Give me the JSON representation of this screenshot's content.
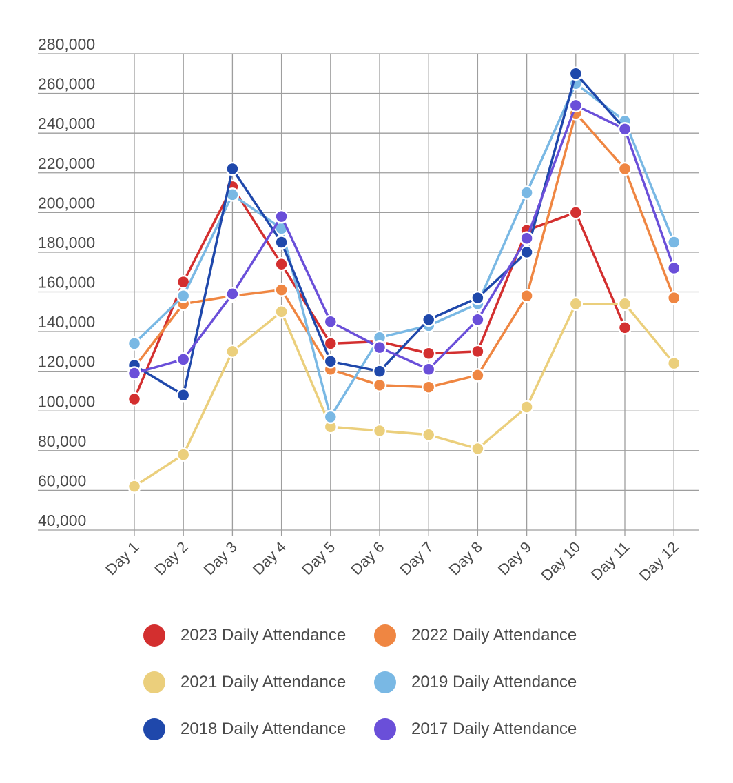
{
  "chart_data": {
    "type": "line",
    "title": "",
    "xlabel": "",
    "ylabel": "",
    "categories": [
      "Day 1",
      "Day 2",
      "Day 3",
      "Day 4",
      "Day 5",
      "Day 6",
      "Day 7",
      "Day 8",
      "Day 9",
      "Day 10",
      "Day 11",
      "Day 12"
    ],
    "ylim": [
      40000,
      280000
    ],
    "yticks": [
      40000,
      60000,
      80000,
      100000,
      120000,
      140000,
      160000,
      180000,
      200000,
      220000,
      240000,
      260000,
      280000
    ],
    "ytick_labels": [
      "40,000",
      "60,000",
      "80,000",
      "100,000",
      "120,000",
      "140,000",
      "160,000",
      "180,000",
      "200,000",
      "220,000",
      "240,000",
      "260,000",
      "280,000"
    ],
    "grid": true,
    "legend_position": "bottom",
    "series": [
      {
        "name": "2023 Daily Attendance",
        "color": "#d32f2f",
        "values": [
          106000,
          165000,
          213000,
          174000,
          134000,
          135000,
          129000,
          130000,
          191000,
          200000,
          142000,
          null
        ]
      },
      {
        "name": "2022 Daily Attendance",
        "color": "#ef8642",
        "values": [
          122000,
          154000,
          158000,
          161000,
          121000,
          113000,
          112000,
          118000,
          158000,
          250000,
          222000,
          157000
        ]
      },
      {
        "name": "2021 Daily Attendance",
        "color": "#ebcf7c",
        "values": [
          62000,
          78000,
          130000,
          150000,
          92000,
          90000,
          88000,
          81000,
          102000,
          154000,
          154000,
          124000
        ]
      },
      {
        "name": "2019 Daily Attendance",
        "color": "#79b8e4",
        "values": [
          134000,
          158000,
          209000,
          192000,
          97000,
          137000,
          143000,
          154000,
          210000,
          265000,
          246000,
          185000
        ]
      },
      {
        "name": "2018 Daily Attendance",
        "color": "#1f48ab",
        "values": [
          123000,
          108000,
          222000,
          185000,
          125000,
          120000,
          146000,
          157000,
          180000,
          270000,
          242000,
          null
        ]
      },
      {
        "name": "2017 Daily Attendance",
        "color": "#6a4fd9",
        "values": [
          119000,
          126000,
          159000,
          198000,
          145000,
          132000,
          121000,
          146000,
          187000,
          254000,
          242000,
          172000
        ]
      }
    ]
  }
}
